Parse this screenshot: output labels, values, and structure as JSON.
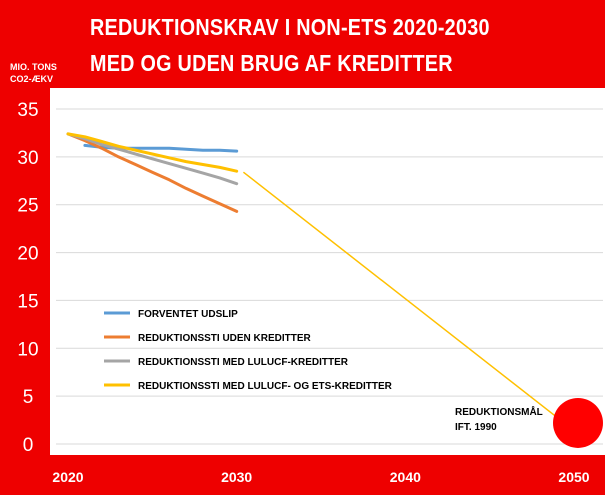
{
  "header": {
    "title_line1": "REDUKTIONSKRAV I NON-ETS 2020-2030",
    "title_line2": "MED OG UDEN BRUG AF KREDITTER",
    "unit_line1": "MIO. TONS",
    "unit_line2": "CO2-ÆKV"
  },
  "colors": {
    "background": "#ee0000",
    "plot": "#ffffff",
    "forventet": "#5b9bd5",
    "uden": "#ed7d31",
    "lulucf": "#a5a5a5",
    "lulucf_ets": "#ffc000",
    "target_marker": "#ff0000"
  },
  "chart_data": {
    "type": "line",
    "title": "REDUKTIONSKRAV I NON-ETS 2020-2030 MED OG UDEN BRUG AF KREDITTER",
    "ylabel": "MIO. TONS CO2-ÆKV",
    "xlabel": "",
    "xlim": [
      2020,
      2050
    ],
    "ylim": [
      0,
      35
    ],
    "x_ticks": [
      2020,
      2030,
      2040,
      2050
    ],
    "y_ticks": [
      0,
      5,
      10,
      15,
      20,
      25,
      30,
      35
    ],
    "grid": "horizontal",
    "legend_position": "center-left",
    "series": [
      {
        "name": "FORVENTET UDSLIP",
        "color_key": "forventet",
        "points": [
          [
            2021,
            31.2
          ],
          [
            2022,
            31.0
          ],
          [
            2023,
            30.9
          ],
          [
            2024,
            30.9
          ],
          [
            2025,
            30.9
          ],
          [
            2026,
            30.9
          ],
          [
            2027,
            30.8
          ],
          [
            2028,
            30.7
          ],
          [
            2029,
            30.7
          ],
          [
            2030,
            30.6
          ]
        ]
      },
      {
        "name": "REDUKTIONSSTI UDEN KREDITTER",
        "color_key": "uden",
        "points": [
          [
            2020,
            32.4
          ],
          [
            2021,
            31.7
          ],
          [
            2022,
            30.9
          ],
          [
            2023,
            30.0
          ],
          [
            2024,
            29.2
          ],
          [
            2025,
            28.4
          ],
          [
            2026,
            27.6
          ],
          [
            2027,
            26.7
          ],
          [
            2028,
            25.9
          ],
          [
            2029,
            25.1
          ],
          [
            2030,
            24.3
          ]
        ]
      },
      {
        "name": "REDUKTIONSSTI MED LULUCF-KREDITTER",
        "color_key": "lulucf",
        "points": [
          [
            2020,
            32.4
          ],
          [
            2021,
            31.9
          ],
          [
            2022,
            31.3
          ],
          [
            2023,
            30.8
          ],
          [
            2024,
            30.3
          ],
          [
            2025,
            29.8
          ],
          [
            2026,
            29.3
          ],
          [
            2027,
            28.8
          ],
          [
            2028,
            28.3
          ],
          [
            2029,
            27.8
          ],
          [
            2030,
            27.2
          ]
        ]
      },
      {
        "name": "REDUKTIONSSTI MED LULUCF- OG ETS-KREDITTER",
        "color_key": "lulucf_ets",
        "points": [
          [
            2020,
            32.4
          ],
          [
            2021,
            32.1
          ],
          [
            2022,
            31.6
          ],
          [
            2023,
            31.1
          ],
          [
            2024,
            30.7
          ],
          [
            2025,
            30.3
          ],
          [
            2026,
            29.9
          ],
          [
            2027,
            29.5
          ],
          [
            2028,
            29.2
          ],
          [
            2029,
            28.9
          ],
          [
            2030,
            28.5
          ]
        ]
      }
    ],
    "projection": {
      "color_key": "lulucf_ets",
      "points": [
        [
          2030.4,
          28.4
        ],
        [
          2049.2,
          2.5
        ]
      ]
    },
    "target": {
      "label_line1": "REDUKTIONSMÅL",
      "label_line2": "IFT. 1990",
      "x": 2050,
      "y": 2.2
    }
  }
}
